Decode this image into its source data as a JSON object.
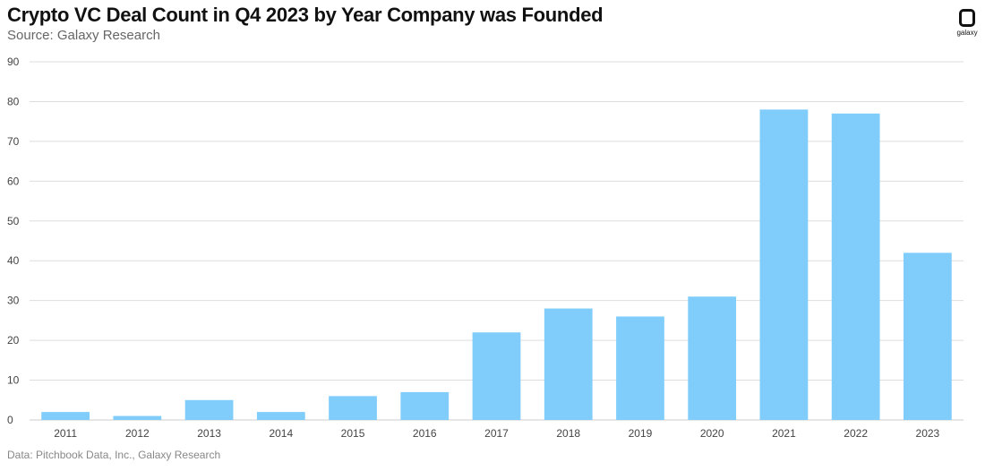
{
  "header": {
    "title": "Crypto VC Deal Count in Q4 2023 by Year Company was Founded",
    "subtitle": "Source: Galaxy Research"
  },
  "logo": {
    "icon": "galaxy-logo-icon",
    "text": "galaxy"
  },
  "footer": {
    "text": "Data: Pitchbook Data, Inc., Galaxy Research"
  },
  "colors": {
    "bar": "#80CDFB",
    "grid": "#dddddd",
    "axis": "#cccccc"
  },
  "chart_data": {
    "type": "bar",
    "title": "Crypto VC Deal Count in Q4 2023 by Year Company was Founded",
    "subtitle": "Source: Galaxy Research",
    "xlabel": "",
    "ylabel": "",
    "categories": [
      "2011",
      "2012",
      "2013",
      "2014",
      "2015",
      "2016",
      "2017",
      "2018",
      "2019",
      "2020",
      "2021",
      "2022",
      "2023"
    ],
    "values": [
      2,
      1,
      5,
      2,
      6,
      7,
      22,
      28,
      26,
      31,
      78,
      77,
      42
    ],
    "ylim": [
      0,
      90
    ],
    "yticks": [
      0,
      10,
      20,
      30,
      40,
      50,
      60,
      70,
      80,
      90
    ],
    "grid": true,
    "legend": "none"
  }
}
